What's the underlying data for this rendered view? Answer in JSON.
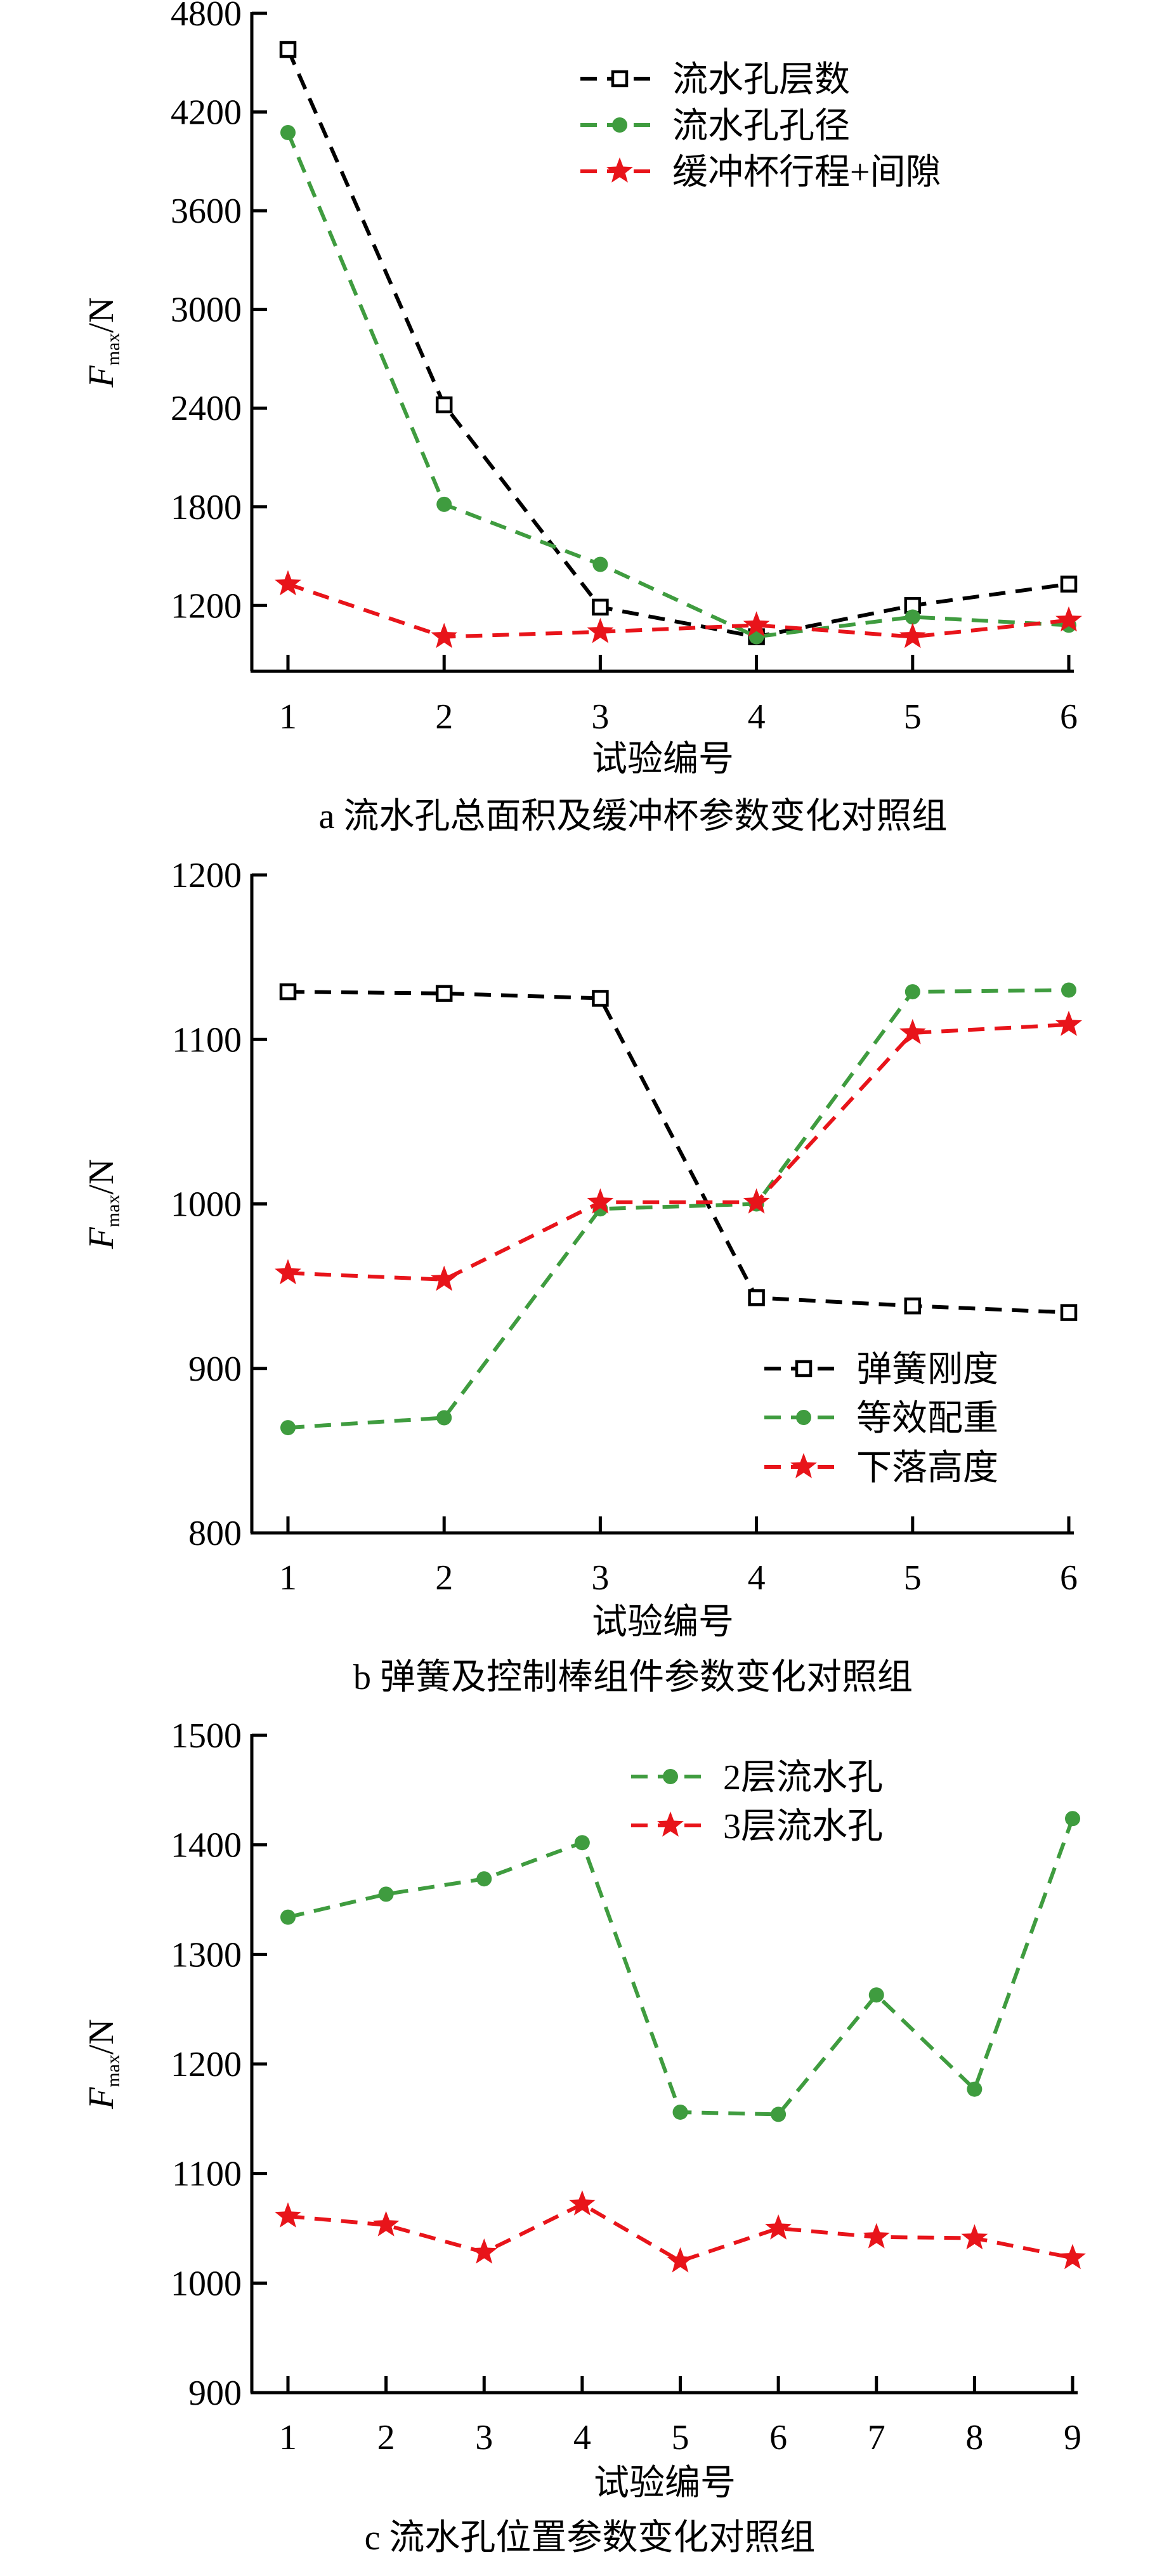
{
  "colors": {
    "black": "#000000",
    "green": "#3f9c3f",
    "red": "#e8141a"
  },
  "chart_data": [
    {
      "type": "line",
      "caption": "a  流水孔总面积及缓冲杯参数变化对照组",
      "xlabel": "试验编号",
      "ylabel_main": "F",
      "ylabel_sub": "max",
      "ylabel_unit": "/N",
      "x": [
        1,
        2,
        3,
        4,
        5,
        6
      ],
      "xticks": [
        1,
        2,
        3,
        4,
        5,
        6
      ],
      "ylim": [
        800,
        4800
      ],
      "yticks": [
        1200,
        1800,
        2400,
        3000,
        3600,
        4200,
        4800
      ],
      "legend_position": "top-right",
      "series": [
        {
          "name": "流水孔层数",
          "marker": "square-open",
          "color": "#000000",
          "values": [
            4580,
            2420,
            1190,
            1010,
            1200,
            1330
          ]
        },
        {
          "name": "流水孔孔径",
          "marker": "circle",
          "color": "#3f9c3f",
          "values": [
            4075,
            1815,
            1450,
            1010,
            1130,
            1080
          ]
        },
        {
          "name": "缓冲杯行程+间隙",
          "marker": "star",
          "color": "#e8141a",
          "values": [
            1330,
            1010,
            1040,
            1080,
            1010,
            1110
          ]
        }
      ]
    },
    {
      "type": "line",
      "caption": "b  弹簧及控制棒组件参数变化对照组",
      "xlabel": "试验编号",
      "ylabel_main": "F",
      "ylabel_sub": "max",
      "ylabel_unit": "/N",
      "x": [
        1,
        2,
        3,
        4,
        5,
        6
      ],
      "xticks": [
        1,
        2,
        3,
        4,
        5,
        6
      ],
      "ylim": [
        800,
        1200
      ],
      "yticks": [
        800,
        900,
        1000,
        1100,
        1200
      ],
      "legend_position": "bottom-right",
      "series": [
        {
          "name": "弹簧刚度",
          "marker": "square-open",
          "color": "#000000",
          "values": [
            1129,
            1128,
            1125,
            943,
            938,
            934
          ]
        },
        {
          "name": "等效配重",
          "marker": "circle",
          "color": "#3f9c3f",
          "values": [
            864,
            870,
            997,
            1000,
            1129,
            1130
          ]
        },
        {
          "name": "下落高度",
          "marker": "star",
          "color": "#e8141a",
          "values": [
            958,
            954,
            1001,
            1001,
            1104,
            1109
          ]
        }
      ]
    },
    {
      "type": "line",
      "caption": "c  流水孔位置参数变化对照组",
      "xlabel": "试验编号",
      "ylabel_main": "F",
      "ylabel_sub": "max",
      "ylabel_unit": "/N",
      "x": [
        1,
        2,
        3,
        4,
        5,
        6,
        7,
        8,
        9
      ],
      "xticks": [
        1,
        2,
        3,
        4,
        5,
        6,
        7,
        8,
        9
      ],
      "ylim": [
        900,
        1500
      ],
      "yticks": [
        900,
        1000,
        1100,
        1200,
        1300,
        1400,
        1500
      ],
      "legend_position": "top-right",
      "series": [
        {
          "name": "2层流水孔",
          "marker": "circle",
          "color": "#3f9c3f",
          "values": [
            1334,
            1355,
            1369,
            1402,
            1156,
            1154,
            1263,
            1177,
            1424
          ]
        },
        {
          "name": "3层流水孔",
          "marker": "star",
          "color": "#e8141a",
          "values": [
            1061,
            1053,
            1028,
            1072,
            1020,
            1050,
            1042,
            1041,
            1023
          ]
        }
      ]
    }
  ]
}
